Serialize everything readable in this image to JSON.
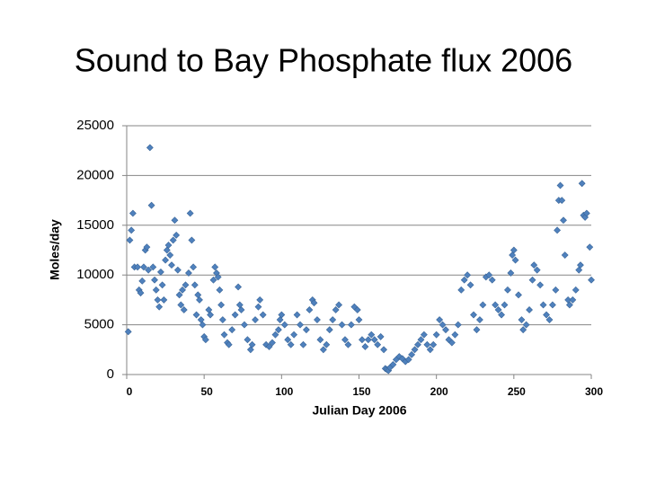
{
  "chart_data": {
    "type": "scatter",
    "title": "Sound to Bay Phosphate flux 2006",
    "x_label": "Julian Day 2006",
    "y_label": "Moles/day",
    "xlim": [
      0,
      300
    ],
    "xticks": [
      0,
      50,
      100,
      150,
      200,
      250,
      300
    ],
    "ylim": [
      0,
      25000
    ],
    "yticks": [
      0,
      5000,
      10000,
      15000,
      20000,
      25000
    ],
    "grid": true,
    "color": "#4f81bd",
    "x": [
      1,
      2,
      3,
      4,
      5,
      7,
      8,
      9,
      10,
      11,
      12,
      13,
      14,
      15,
      16,
      17,
      18,
      19,
      20,
      21,
      22,
      23,
      24,
      25,
      26,
      27,
      28,
      29,
      30,
      31,
      32,
      33,
      34,
      35,
      36,
      37,
      38,
      40,
      41,
      42,
      43,
      44,
      45,
      46,
      47,
      48,
      49,
      50,
      51,
      53,
      54,
      56,
      57,
      58,
      59,
      60,
      61,
      62,
      63,
      65,
      66,
      68,
      70,
      72,
      73,
      74,
      76,
      78,
      80,
      81,
      83,
      85,
      86,
      88,
      90,
      92,
      94,
      96,
      98,
      99,
      100,
      102,
      104,
      106,
      108,
      110,
      112,
      114,
      116,
      118,
      120,
      121,
      123,
      125,
      127,
      129,
      131,
      133,
      135,
      137,
      139,
      141,
      143,
      145,
      147,
      149,
      150,
      152,
      154,
      156,
      158,
      160,
      162,
      164,
      166,
      167,
      168,
      169,
      170,
      172,
      174,
      176,
      178,
      180,
      182,
      184,
      186,
      188,
      190,
      192,
      194,
      196,
      198,
      200,
      202,
      204,
      206,
      208,
      210,
      212,
      214,
      216,
      218,
      220,
      222,
      224,
      226,
      228,
      230,
      232,
      234,
      236,
      238,
      240,
      242,
      244,
      246,
      248,
      249,
      250,
      251,
      253,
      255,
      256,
      258,
      260,
      262,
      263,
      265,
      267,
      269,
      271,
      273,
      275,
      277,
      278,
      279,
      280,
      281,
      282,
      283,
      285,
      286,
      288,
      290,
      292,
      293,
      294,
      295,
      296,
      297,
      299,
      300
    ],
    "values": [
      4300,
      13500,
      14500,
      16200,
      10800,
      10800,
      8500,
      8200,
      9400,
      10800,
      12500,
      12800,
      10500,
      22800,
      17000,
      10800,
      9500,
      8500,
      7500,
      6800,
      10300,
      9000,
      7500,
      11500,
      12500,
      13000,
      12000,
      11000,
      13500,
      15500,
      14000,
      10500,
      8000,
      7000,
      8500,
      6500,
      9000,
      10200,
      16200,
      13500,
      10800,
      9000,
      6000,
      8000,
      7500,
      5500,
      5000,
      3800,
      3500,
      6500,
      6000,
      9500,
      10800,
      10200,
      9800,
      8500,
      7000,
      5500,
      4000,
      3200,
      3000,
      4500,
      6000,
      8800,
      7000,
      6500,
      5000,
      3500,
      2500,
      3000,
      5500,
      6800,
      7500,
      6000,
      3000,
      2800,
      3200,
      4000,
      4500,
      5500,
      6000,
      5000,
      3500,
      3000,
      4000,
      6000,
      5000,
      3000,
      4500,
      6500,
      7500,
      7200,
      5500,
      3500,
      2500,
      3000,
      4500,
      5500,
      6500,
      7000,
      5000,
      3500,
      3000,
      5000,
      6800,
      6500,
      5500,
      3500,
      2800,
      3500,
      4000,
      3500,
      3000,
      3800,
      2500,
      600,
      500,
      400,
      700,
      1000,
      1500,
      1800,
      1600,
      1300,
      1500,
      2000,
      2500,
      3000,
      3500,
      4000,
      3000,
      2500,
      3000,
      4000,
      5500,
      5000,
      4500,
      3500,
      3200,
      4000,
      5000,
      8500,
      9500,
      10000,
      9000,
      6000,
      4500,
      5500,
      7000,
      9800,
      10000,
      9500,
      7000,
      6500,
      6000,
      7000,
      8500,
      10200,
      12000,
      12500,
      11500,
      8000,
      5500,
      4500,
      5000,
      6500,
      9500,
      11000,
      10500,
      9000,
      7000,
      6000,
      5500,
      7000,
      8500,
      14500,
      17500,
      19000,
      17500,
      15500,
      12000,
      7500,
      7000,
      7500,
      8500,
      10500,
      11000,
      19200,
      16000,
      15800,
      16200,
      12800,
      9500
    ]
  }
}
